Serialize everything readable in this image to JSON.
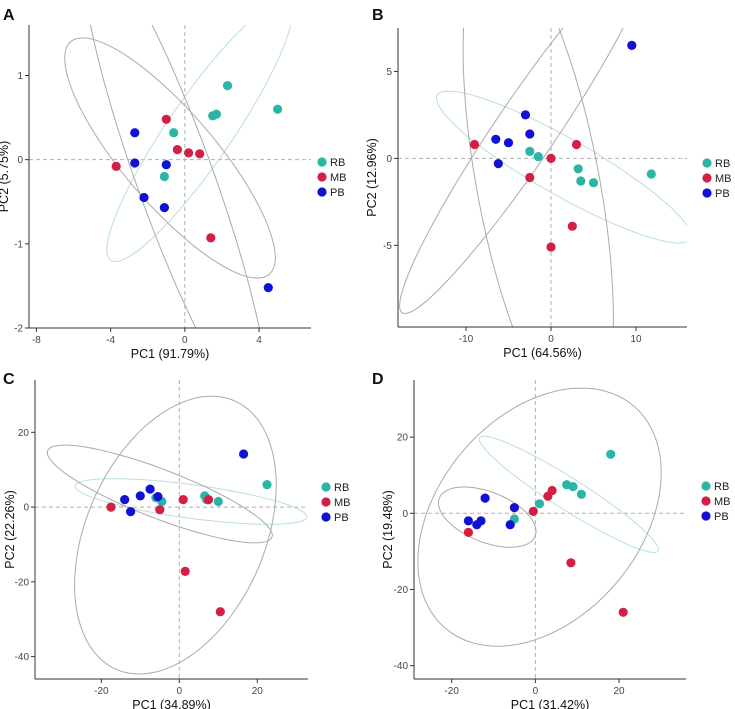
{
  "colors": {
    "RB": "#2bb5a6",
    "MB": "#d21f45",
    "PB": "#1111d4",
    "axis": "#333333",
    "ellipse": "#aaaaaa",
    "ellipse_rb": "#b8e0da",
    "guide": "#b0b0b0"
  },
  "legend": {
    "items": [
      {
        "key": "RB",
        "label": "RB"
      },
      {
        "key": "MB",
        "label": "MB"
      },
      {
        "key": "PB",
        "label": "PB"
      }
    ]
  },
  "chart_data": [
    {
      "panel_label": "A",
      "type": "scatter",
      "xlabel": "PC1 (91.79%)",
      "ylabel": "PC2 (5.75%)",
      "xlim": [
        -8.4,
        6.8
      ],
      "ylim": [
        -2.0,
        1.6
      ],
      "xticks": [
        -8,
        -4,
        0,
        4
      ],
      "yticks": [
        -2,
        -1,
        0,
        1
      ],
      "legend_position": "right",
      "series": [
        {
          "name": "RB",
          "points": [
            [
              -1.1,
              -0.2
            ],
            [
              -0.6,
              0.32
            ],
            [
              1.5,
              0.52
            ],
            [
              1.7,
              0.54
            ],
            [
              2.3,
              0.88
            ],
            [
              5.0,
              0.6
            ]
          ]
        },
        {
          "name": "MB",
          "points": [
            [
              -3.7,
              -0.08
            ],
            [
              -1.0,
              0.48
            ],
            [
              -0.4,
              0.12
            ],
            [
              0.2,
              0.08
            ],
            [
              0.8,
              0.07
            ],
            [
              1.4,
              -0.93
            ]
          ]
        },
        {
          "name": "PB",
          "points": [
            [
              -2.7,
              0.32
            ],
            [
              -2.7,
              -0.04
            ],
            [
              -2.2,
              -0.45
            ],
            [
              -1.0,
              -0.06
            ],
            [
              -1.1,
              -0.57
            ],
            [
              4.5,
              -1.52
            ]
          ]
        }
      ],
      "ellipses": [
        {
          "group": "RB",
          "cx": 0.8,
          "cy": 0.34,
          "rx": 5.2,
          "ry": 0.62,
          "angle": 16
        },
        {
          "group": "MB",
          "cx": -0.8,
          "cy": 0.02,
          "rx": 5.8,
          "ry": 0.78,
          "angle": -12
        },
        {
          "group": "PB",
          "cx": -0.5,
          "cy": -0.24,
          "rx": 5.6,
          "ry": 1.1,
          "angle": -28
        }
      ]
    },
    {
      "panel_label": "B",
      "type": "scatter",
      "xlabel": "PC1 (64.56%)",
      "ylabel": "PC2 (12.96%)",
      "xlim": [
        -18,
        16
      ],
      "ylim": [
        -9.7,
        7.5
      ],
      "xticks": [
        -10,
        0,
        10
      ],
      "yticks": [
        -5,
        0,
        5
      ],
      "legend_position": "right",
      "series": [
        {
          "name": "RB",
          "points": [
            [
              -2.5,
              0.4
            ],
            [
              -1.5,
              0.1
            ],
            [
              3.2,
              -0.6
            ],
            [
              3.5,
              -1.3
            ],
            [
              5.0,
              -1.4
            ],
            [
              11.8,
              -0.9
            ]
          ]
        },
        {
          "name": "MB",
          "points": [
            [
              -9.0,
              0.8
            ],
            [
              -2.5,
              -1.1
            ],
            [
              0.0,
              0.0
            ],
            [
              3.0,
              0.8
            ],
            [
              2.5,
              -3.9
            ],
            [
              0.0,
              -5.1
            ]
          ]
        },
        {
          "name": "PB",
          "points": [
            [
              -6.5,
              1.1
            ],
            [
              -5.0,
              0.9
            ],
            [
              -6.2,
              -0.3
            ],
            [
              -3.0,
              2.5
            ],
            [
              -2.5,
              1.4
            ],
            [
              9.5,
              6.5
            ]
          ]
        }
      ],
      "ellipses": [
        {
          "group": "RB",
          "cx": 1.5,
          "cy": -0.5,
          "rx": 15.5,
          "ry": 1.8,
          "angle": -15
        },
        {
          "group": "MB",
          "cx": -1.5,
          "cy": -1.5,
          "rx": 15.0,
          "ry": 6.8,
          "angle": -65
        },
        {
          "group": "PB",
          "cx": -3.0,
          "cy": 1.6,
          "rx": 18.0,
          "ry": 2.5,
          "angle": 35
        }
      ]
    },
    {
      "panel_label": "C",
      "type": "scatter",
      "xlabel": "PC1 (34.89%)",
      "ylabel": "PC2 (22.26%)",
      "xlim": [
        -37,
        33
      ],
      "ylim": [
        -46,
        34
      ],
      "xticks": [
        -20,
        0,
        20
      ],
      "yticks": [
        -40,
        -20,
        0,
        20
      ],
      "legend_position": "right",
      "series": [
        {
          "name": "RB",
          "points": [
            [
              -6.0,
              2.5
            ],
            [
              -4.5,
              1.5
            ],
            [
              6.5,
              3.0
            ],
            [
              10.0,
              1.5
            ],
            [
              22.5,
              6.0
            ],
            [
              7.0,
              2.0
            ]
          ]
        },
        {
          "name": "MB",
          "points": [
            [
              -17.5,
              0.0
            ],
            [
              -5.0,
              -0.7
            ],
            [
              1.0,
              2.0
            ],
            [
              7.5,
              2.0
            ],
            [
              1.5,
              -17.2
            ],
            [
              10.5,
              -28.0
            ]
          ]
        },
        {
          "name": "PB",
          "points": [
            [
              -14.0,
              2.0
            ],
            [
              -12.5,
              -1.2
            ],
            [
              -10.0,
              3.0
            ],
            [
              -7.5,
              4.8
            ],
            [
              -5.5,
              2.8
            ],
            [
              16.5,
              14.2
            ]
          ]
        }
      ],
      "ellipses": [
        {
          "group": "RB",
          "cx": 3.0,
          "cy": 1.5,
          "rx": 30.0,
          "ry": 4.5,
          "angle": -8
        },
        {
          "group": "MB",
          "cx": -1.0,
          "cy": -7.5,
          "rx": 23.0,
          "ry": 39.0,
          "angle": -22
        },
        {
          "group": "PB",
          "cx": -5.0,
          "cy": 3.5,
          "rx": 31.0,
          "ry": 6.5,
          "angle": -22
        }
      ]
    },
    {
      "panel_label": "D",
      "type": "scatter",
      "xlabel": "PC1 (31.42%)",
      "ylabel": "PC2 (19.48%)",
      "xlim": [
        -29,
        36
      ],
      "ylim": [
        -43.5,
        35
      ],
      "xticks": [
        -20,
        0,
        20
      ],
      "yticks": [
        -40,
        -20,
        0,
        20
      ],
      "legend_position": "right",
      "series": [
        {
          "name": "RB",
          "points": [
            [
              -5.0,
              -1.5
            ],
            [
              1.0,
              2.5
            ],
            [
              7.5,
              7.5
            ],
            [
              9.0,
              7.0
            ],
            [
              11.0,
              5.0
            ],
            [
              18.0,
              15.5
            ]
          ]
        },
        {
          "name": "MB",
          "points": [
            [
              -16.0,
              -5.0
            ],
            [
              -0.5,
              0.5
            ],
            [
              3.0,
              4.5
            ],
            [
              4.0,
              6.0
            ],
            [
              8.5,
              -13.0
            ],
            [
              21.0,
              -26.0
            ]
          ]
        },
        {
          "name": "PB",
          "points": [
            [
              -16.0,
              -2.0
            ],
            [
              -14.0,
              -3.0
            ],
            [
              -13.0,
              -2.0
            ],
            [
              -12.0,
              4.0
            ],
            [
              -6.0,
              -3.0
            ],
            [
              -5.0,
              1.5
            ]
          ]
        }
      ],
      "ellipses": [
        {
          "group": "RB",
          "cx": 8.0,
          "cy": 5.0,
          "rx": 26.0,
          "ry": 4.0,
          "angle": -35
        },
        {
          "group": "MB",
          "cx": 1.0,
          "cy": -1.0,
          "rx": 25.0,
          "ry": 37.0,
          "angle": -33
        },
        {
          "group": "PB",
          "cx": -11.5,
          "cy": -1.0,
          "rx": 12.5,
          "ry": 6.5,
          "angle": -25
        }
      ]
    }
  ]
}
